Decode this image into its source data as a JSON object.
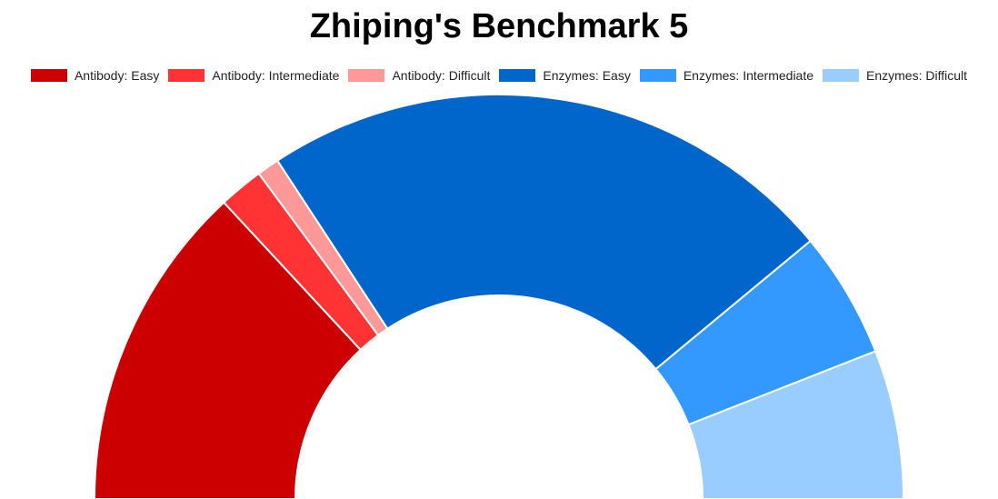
{
  "chart_data": {
    "type": "pie",
    "subtype": "half-donut",
    "title": "Zhiping's Benchmark 5",
    "legend_position": "top",
    "slices": [
      {
        "label": "Antibody: Easy",
        "value": 22,
        "color": "#cc0000"
      },
      {
        "label": "Antibody: Intermediate",
        "value": 3,
        "color": "#ff3333"
      },
      {
        "label": "Antibody: Difficult",
        "value": 1.5,
        "color": "#ff9999"
      },
      {
        "label": "Enzymes: Easy",
        "value": 39,
        "color": "#0066cc"
      },
      {
        "label": "Enzymes: Intermediate",
        "value": 8.5,
        "color": "#3399ff"
      },
      {
        "label": "Enzymes: Difficult",
        "value": 10,
        "color": "#99ccff"
      }
    ]
  }
}
